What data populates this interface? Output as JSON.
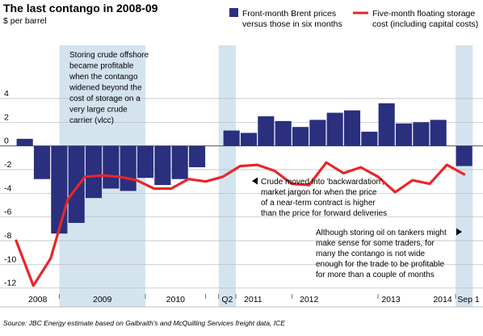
{
  "chart_data": {
    "type": "bar",
    "title": "The last contango in 2008-09",
    "ylabel": "$ per barrel",
    "ylim": [
      -12.5,
      8.5
    ],
    "yticks": [
      4,
      2,
      0,
      -2,
      -4,
      -6,
      -8,
      -10,
      -12
    ],
    "ytick_labels": [
      "4",
      "2",
      "0",
      "-2",
      "-4",
      "-6",
      "-8",
      "-10",
      "-12"
    ],
    "grid": true,
    "legend_position": "top",
    "categories": [
      "2008-01",
      "2008-02",
      "2008-03",
      "2008-04",
      "2008-05",
      "2008-06",
      "2008-07",
      "2008-08",
      "2008-09",
      "2008-10",
      "2008-11",
      "2008-12",
      "2009-01",
      "2009-02",
      "2009-03",
      "2009-04",
      "2009-05",
      "2009-06",
      "2009-07",
      "2009-08",
      "2009-09",
      "2009-10",
      "2009-11",
      "2009-12",
      "2010-Q1",
      "2010-Q2",
      "2010-Q3",
      "2010-Q4",
      "2011-Q1",
      "2011-Q2",
      "2011-Q3",
      "2011-Q4",
      "2012-Q1",
      "2012-Q2",
      "2012-Q3",
      "2012-Q4",
      "2013-Q1",
      "2013-Q2",
      "2013-Q3",
      "2013-Q4",
      "2014-Q1",
      "2014-Q2",
      "2014-Q3",
      "2014-Sep1"
    ],
    "series": [
      {
        "name": "Front-month Brent prices versus those in six months",
        "kind": "bar",
        "color": "#2a2f7e",
        "bars": [
          {
            "start": 0,
            "end": 2,
            "value": 0.6
          },
          {
            "start": 2,
            "end": 4,
            "value": -2.8
          },
          {
            "start": 4,
            "end": 6,
            "value": -7.4
          },
          {
            "start": 6,
            "end": 8,
            "value": -6.5
          },
          {
            "start": 8,
            "end": 10,
            "value": -4.4
          },
          {
            "start": 10,
            "end": 12,
            "value": -3.6
          },
          {
            "start": 12,
            "end": 14,
            "value": -3.8
          },
          {
            "start": 14,
            "end": 16,
            "value": -2.7
          },
          {
            "start": 16,
            "end": 18,
            "value": -3.3
          },
          {
            "start": 18,
            "end": 20,
            "value": -2.8
          },
          {
            "start": 20,
            "end": 22,
            "value": -1.8
          },
          {
            "start": 24,
            "end": 26,
            "value": 1.3
          },
          {
            "start": 26,
            "end": 28,
            "value": 1.1
          },
          {
            "start": 28,
            "end": 30,
            "value": 2.5
          },
          {
            "start": 30,
            "end": 32,
            "value": 2.1
          },
          {
            "start": 32,
            "end": 34,
            "value": 1.6
          },
          {
            "start": 34,
            "end": 36,
            "value": 2.2
          },
          {
            "start": 36,
            "end": 38,
            "value": 2.8
          },
          {
            "start": 38,
            "end": 40,
            "value": 3.0
          },
          {
            "start": 40,
            "end": 42,
            "value": 1.2
          },
          {
            "start": 42,
            "end": 44,
            "value": 3.6
          },
          {
            "start": 44,
            "end": 46,
            "value": 1.9
          },
          {
            "start": 46,
            "end": 48,
            "value": 2.0
          },
          {
            "start": 48,
            "end": 50,
            "value": 2.2
          },
          {
            "start": 51,
            "end": 53,
            "value": -1.7
          }
        ]
      },
      {
        "name": "Five-month floating storage cost (including capital costs)",
        "kind": "line",
        "color": "#e8262a",
        "x": [
          0,
          2,
          4,
          6,
          8,
          10,
          12,
          14,
          16,
          18,
          20,
          22,
          24,
          26,
          28,
          30,
          32,
          34,
          36,
          38,
          40,
          42,
          44,
          46,
          48,
          50,
          52
        ],
        "values": [
          -8.0,
          -11.8,
          -9.5,
          -4.5,
          -2.6,
          -2.5,
          -2.6,
          -2.9,
          -3.6,
          -3.6,
          -2.8,
          -3.0,
          -2.6,
          -1.7,
          -1.6,
          -2.1,
          -3.2,
          -3.3,
          -1.4,
          -2.3,
          -1.8,
          -2.6,
          -3.9,
          -2.9,
          -3.2,
          -1.6,
          -2.4
        ]
      }
    ],
    "x_domain": [
      0,
      54
    ],
    "x_labels": [
      {
        "at": 2.5,
        "label": "2008"
      },
      {
        "at": 10,
        "label": "2009"
      },
      {
        "at": 18.5,
        "label": "2010"
      },
      {
        "at": 24.5,
        "label": "Q2"
      },
      {
        "at": 27.5,
        "label": "2011"
      },
      {
        "at": 34,
        "label": "2012"
      },
      {
        "at": 43.5,
        "label": "2013"
      },
      {
        "at": 49.5,
        "label": "2014"
      },
      {
        "at": 52.5,
        "label": "Sep 1"
      }
    ],
    "highlight_bands": [
      {
        "start": 5,
        "end": 15
      },
      {
        "start": 23.5,
        "end": 25.5
      },
      {
        "start": 51,
        "end": 53
      }
    ],
    "annotations": [
      {
        "lines": [
          "Storing crude offshore",
          "became profitable",
          "when the contango",
          "widened beyond the",
          "cost of storage on a",
          "very large crude",
          "carrier (vlcc)"
        ]
      },
      {
        "arrow": "left",
        "lines": [
          "Crude moved into 'backwardation',",
          "market jargon for when the price",
          "of a near-term contract is higher",
          "than the price for forward deliveries"
        ]
      },
      {
        "arrow": "right",
        "lines": [
          "Although storing oil on tankers might",
          "make sense for some traders, for",
          "many the contango is not wide",
          "enough for the trade to be profitable",
          "for more than a couple of months"
        ]
      }
    ],
    "source": "Source: JBC Energy estimate based on Galbraith's and McQuilling Services freight data, ICE"
  }
}
